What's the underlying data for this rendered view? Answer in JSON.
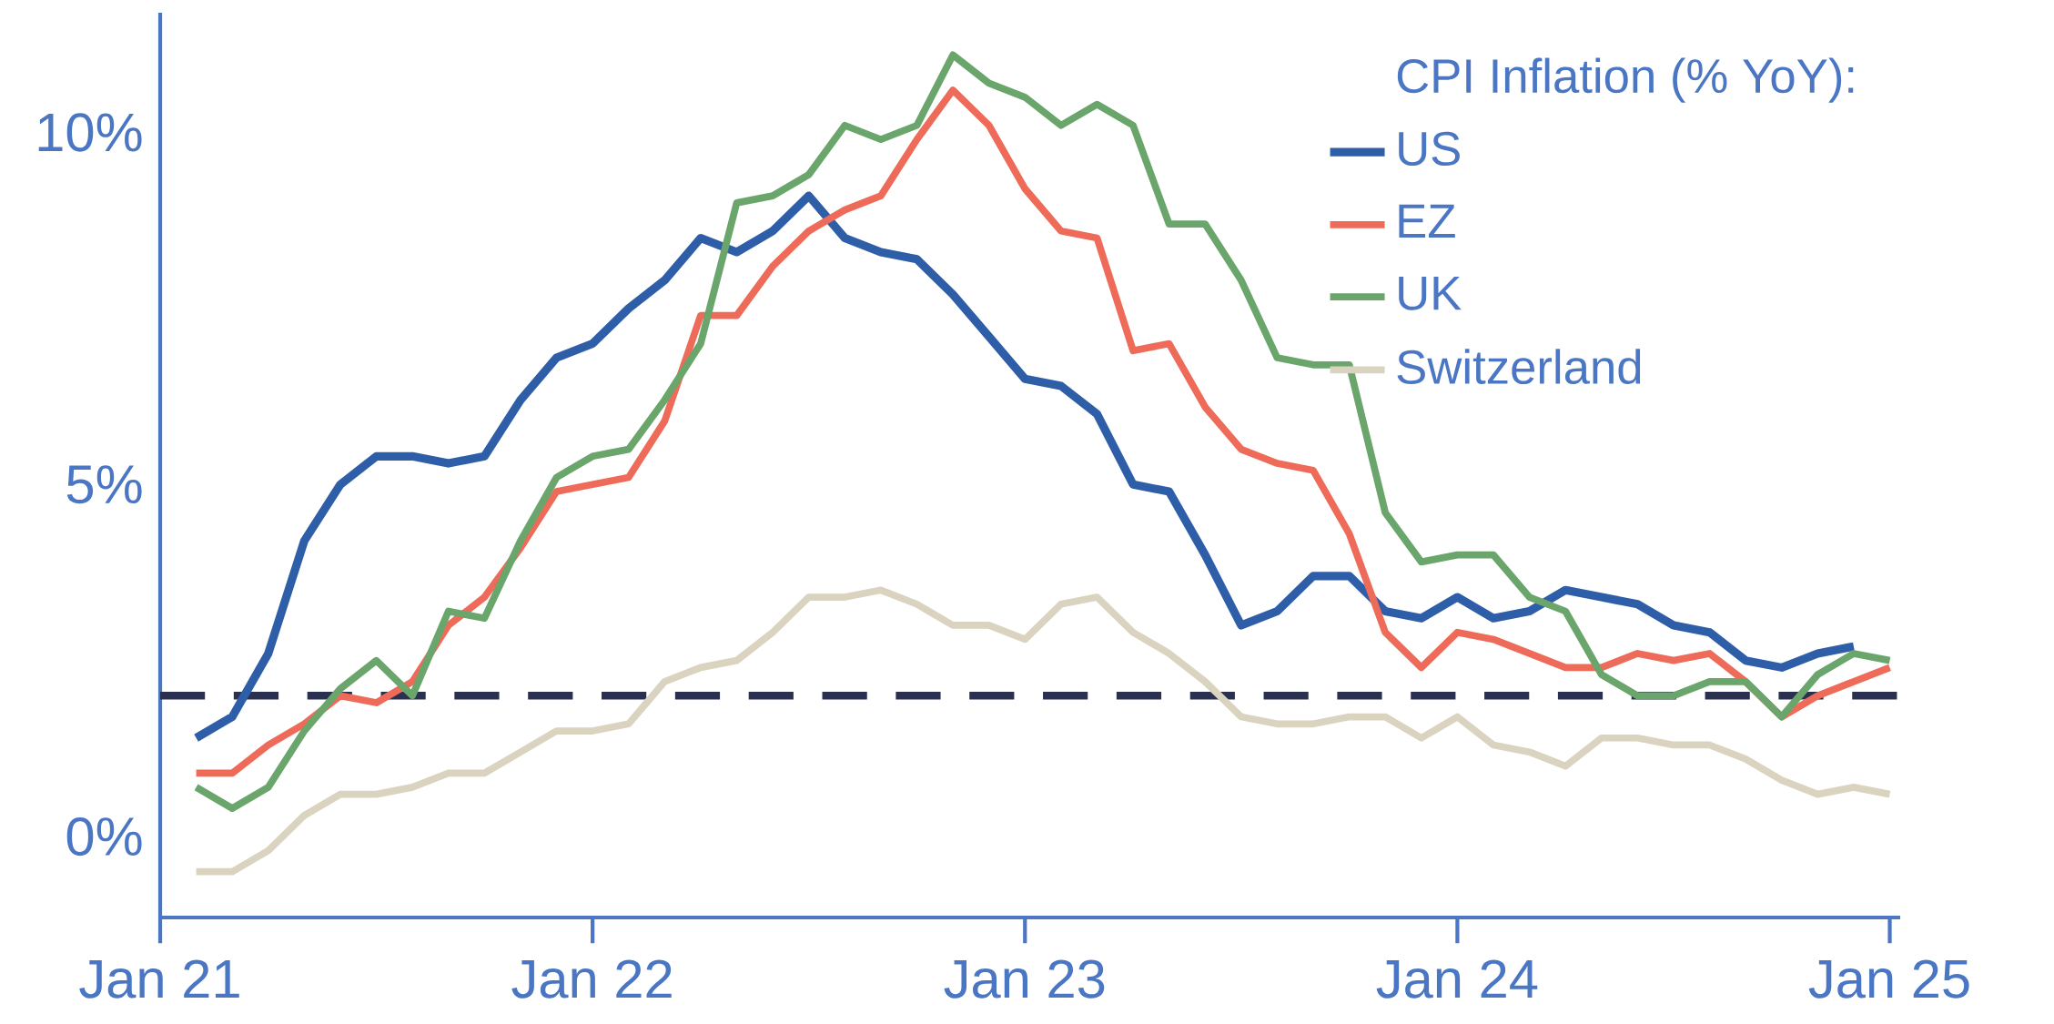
{
  "chart_data": {
    "type": "line",
    "legend_title": "CPI Inflation (% YoY):",
    "legend": "top right",
    "xlim": [
      "2021-01",
      "2025-01-10"
    ],
    "xticks": [
      {
        "value": "2021-01",
        "label": "Jan 21"
      },
      {
        "value": "2022-01",
        "label": "Jan 22"
      },
      {
        "value": "2023-01",
        "label": "Jan 23"
      },
      {
        "value": "2024-01",
        "label": "Jan 24"
      },
      {
        "value": "2025-01",
        "label": "Jan 25"
      }
    ],
    "ylim": [
      -1.15,
      11.7
    ],
    "yticks": [
      {
        "value": 0,
        "label": "0%"
      },
      {
        "value": 5,
        "label": "5%"
      },
      {
        "value": 10,
        "label": "10%"
      }
    ],
    "ref_lines": [
      {
        "axis": "y",
        "value": 2,
        "label": null,
        "color": "#2a3150",
        "line_style": "dashed"
      }
    ],
    "series": [
      {
        "name": "US",
        "color": "#2f5ea8",
        "x": [
          "2021-02",
          "2021-03",
          "2021-04",
          "2021-05",
          "2021-06",
          "2021-07",
          "2021-08",
          "2021-09",
          "2021-10",
          "2021-11",
          "2021-12",
          "2022-01",
          "2022-02",
          "2022-03",
          "2022-04",
          "2022-05",
          "2022-06",
          "2022-07",
          "2022-08",
          "2022-09",
          "2022-10",
          "2022-11",
          "2022-12",
          "2023-01",
          "2023-02",
          "2023-03",
          "2023-04",
          "2023-05",
          "2023-06",
          "2023-07",
          "2023-08",
          "2023-09",
          "2023-10",
          "2023-11",
          "2023-12",
          "2024-01",
          "2024-02",
          "2024-03",
          "2024-04",
          "2024-05",
          "2024-06",
          "2024-07",
          "2024-08",
          "2024-09",
          "2024-10",
          "2024-11",
          "2024-12"
        ],
        "values": [
          1.4,
          1.7,
          2.6,
          4.2,
          5.0,
          5.4,
          5.4,
          5.3,
          5.4,
          6.2,
          6.8,
          7.0,
          7.5,
          7.9,
          8.5,
          8.3,
          8.6,
          9.1,
          8.5,
          8.3,
          8.2,
          7.7,
          7.1,
          6.5,
          6.4,
          6.0,
          5.0,
          4.9,
          4.0,
          3.0,
          3.2,
          3.7,
          3.7,
          3.2,
          3.1,
          3.4,
          3.1,
          3.2,
          3.5,
          3.4,
          3.3,
          3.0,
          2.9,
          2.5,
          2.4,
          2.6,
          2.7
        ]
      },
      {
        "name": "EZ",
        "color": "#ee6b5a",
        "x": [
          "2021-02",
          "2021-03",
          "2021-04",
          "2021-05",
          "2021-06",
          "2021-07",
          "2021-08",
          "2021-09",
          "2021-10",
          "2021-11",
          "2021-12",
          "2022-01",
          "2022-02",
          "2022-03",
          "2022-04",
          "2022-05",
          "2022-06",
          "2022-07",
          "2022-08",
          "2022-09",
          "2022-10",
          "2022-11",
          "2022-12",
          "2023-01",
          "2023-02",
          "2023-03",
          "2023-04",
          "2023-05",
          "2023-06",
          "2023-07",
          "2023-08",
          "2023-09",
          "2023-10",
          "2023-11",
          "2023-12",
          "2024-01",
          "2024-02",
          "2024-03",
          "2024-04",
          "2024-05",
          "2024-06",
          "2024-07",
          "2024-08",
          "2024-09",
          "2024-10",
          "2024-11",
          "2024-12",
          "2025-01"
        ],
        "values": [
          0.9,
          0.9,
          1.3,
          1.6,
          2.0,
          1.9,
          2.2,
          3.0,
          3.4,
          4.1,
          4.9,
          5.0,
          5.1,
          5.9,
          7.4,
          7.4,
          8.1,
          8.6,
          8.9,
          9.1,
          9.9,
          10.6,
          10.1,
          9.2,
          8.6,
          8.5,
          6.9,
          7.0,
          6.1,
          5.5,
          5.3,
          5.2,
          4.3,
          2.9,
          2.4,
          2.9,
          2.8,
          2.6,
          2.4,
          2.4,
          2.6,
          2.5,
          2.6,
          2.2,
          1.7,
          2.0,
          2.2,
          2.4
        ]
      },
      {
        "name": "UK",
        "color": "#6aa56c",
        "x": [
          "2021-02",
          "2021-03",
          "2021-04",
          "2021-05",
          "2021-06",
          "2021-07",
          "2021-08",
          "2021-09",
          "2021-10",
          "2021-11",
          "2021-12",
          "2022-01",
          "2022-02",
          "2022-03",
          "2022-04",
          "2022-05",
          "2022-06",
          "2022-07",
          "2022-08",
          "2022-09",
          "2022-10",
          "2022-11",
          "2022-12",
          "2023-01",
          "2023-02",
          "2023-03",
          "2023-04",
          "2023-05",
          "2023-06",
          "2023-07",
          "2023-08",
          "2023-09",
          "2023-10",
          "2023-11",
          "2023-12",
          "2024-01",
          "2024-02",
          "2024-03",
          "2024-04",
          "2024-05",
          "2024-06",
          "2024-07",
          "2024-08",
          "2024-09",
          "2024-10",
          "2024-11",
          "2024-12",
          "2025-01"
        ],
        "values": [
          0.7,
          0.4,
          0.7,
          1.5,
          2.1,
          2.5,
          2.0,
          3.2,
          3.1,
          4.2,
          5.1,
          5.4,
          5.5,
          6.2,
          7.0,
          9.0,
          9.1,
          9.4,
          10.1,
          9.9,
          10.1,
          11.1,
          10.7,
          10.5,
          10.1,
          10.4,
          10.1,
          8.7,
          8.7,
          7.9,
          6.8,
          6.7,
          6.7,
          4.6,
          3.9,
          4.0,
          4.0,
          3.4,
          3.2,
          2.3,
          2.0,
          2.0,
          2.2,
          2.2,
          1.7,
          2.3,
          2.6,
          2.5
        ]
      },
      {
        "name": "Switzerland",
        "color": "#d9d3bf",
        "x": [
          "2021-02",
          "2021-03",
          "2021-04",
          "2021-05",
          "2021-06",
          "2021-07",
          "2021-08",
          "2021-09",
          "2021-10",
          "2021-11",
          "2021-12",
          "2022-01",
          "2022-02",
          "2022-03",
          "2022-04",
          "2022-05",
          "2022-06",
          "2022-07",
          "2022-08",
          "2022-09",
          "2022-10",
          "2022-11",
          "2022-12",
          "2023-01",
          "2023-02",
          "2023-03",
          "2023-04",
          "2023-05",
          "2023-06",
          "2023-07",
          "2023-08",
          "2023-09",
          "2023-10",
          "2023-11",
          "2023-12",
          "2024-01",
          "2024-02",
          "2024-03",
          "2024-04",
          "2024-05",
          "2024-06",
          "2024-07",
          "2024-08",
          "2024-09",
          "2024-10",
          "2024-11",
          "2024-12",
          "2025-01"
        ],
        "values": [
          -0.5,
          -0.5,
          -0.2,
          0.3,
          0.6,
          0.6,
          0.7,
          0.9,
          0.9,
          1.2,
          1.5,
          1.5,
          1.6,
          2.2,
          2.4,
          2.5,
          2.9,
          3.4,
          3.4,
          3.5,
          3.3,
          3.0,
          3.0,
          2.8,
          3.3,
          3.4,
          2.9,
          2.6,
          2.2,
          1.7,
          1.6,
          1.6,
          1.7,
          1.7,
          1.4,
          1.7,
          1.3,
          1.2,
          1.0,
          1.4,
          1.4,
          1.3,
          1.3,
          1.1,
          0.8,
          0.6,
          0.7,
          0.6
        ]
      }
    ]
  }
}
